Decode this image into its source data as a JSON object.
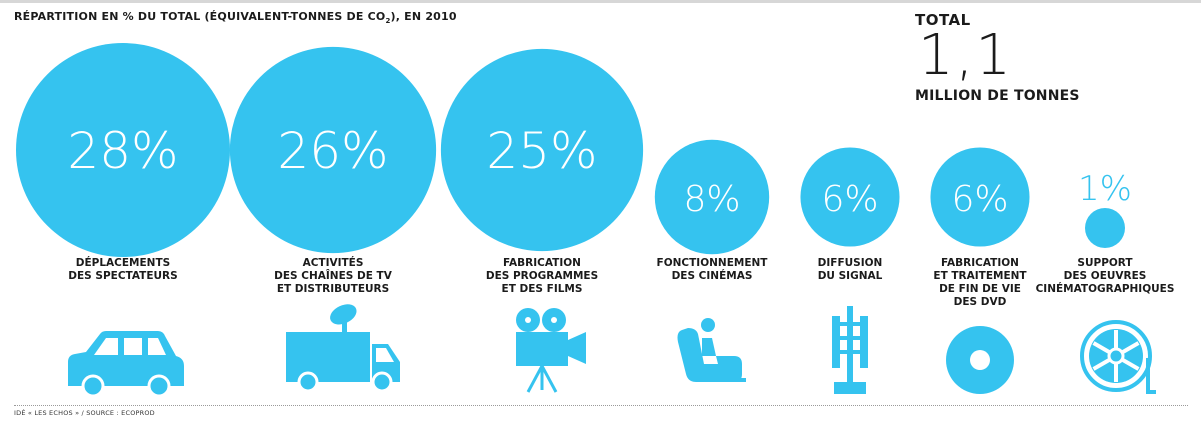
{
  "subtitle_parts": [
    "RÉPARTITION EN % DU TOTAL (ÉQUIVALENT-TONNES DE CO",
    "2",
    "), EN 2010"
  ],
  "total": {
    "label": "TOTAL",
    "value": "1,1",
    "unit": "MILLION DE TONNES"
  },
  "source": "IDÉ « LES ECHOS » / SOURCE : ECOPROD",
  "colors": {
    "accent": "#35c3ef",
    "text": "#1b1b1b",
    "white": "#ffffff"
  },
  "chart_data": {
    "type": "bubble",
    "unit": "%",
    "categories": [
      "DÉPLACEMENTS DES SPECTATEURS",
      "ACTIVITÉS DES CHAÎNES DE TV ET DISTRIBUTEURS",
      "FABRICATION DES PROGRAMMES ET DES FILMS",
      "FONCTIONNEMENT DES CINÉMAS",
      "DIFFUSION DU SIGNAL",
      "FABRICATION ET TRAITEMENT DE FIN DE VIE DES DVD",
      "SUPPORT DES OEUVRES CINÉMATOGRAPHIQUES"
    ],
    "values": [
      28,
      26,
      25,
      8,
      6,
      6,
      1
    ],
    "value_labels": [
      "28%",
      "26%",
      "25%",
      "8%",
      "6%",
      "6%",
      "1%"
    ],
    "label_lines": [
      [
        "DÉPLACEMENTS",
        "DES SPECTATEURS"
      ],
      [
        "ACTIVITÉS",
        "DES CHAÎNES DE TV",
        "ET DISTRIBUTEURS"
      ],
      [
        "FABRICATION",
        "DES PROGRAMMES",
        "ET DES FILMS"
      ],
      [
        "FONCTIONNEMENT",
        "DES CINÉMAS"
      ],
      [
        "DIFFUSION",
        "DU SIGNAL"
      ],
      [
        "FABRICATION",
        "ET TRAITEMENT",
        "DE FIN DE VIE",
        "DES DVD"
      ],
      [
        "SUPPORT",
        "DES OEUVRES",
        "CINÉMATOGRAPHIQUES"
      ]
    ],
    "icons": [
      "car-icon",
      "tv-truck-icon",
      "film-camera-icon",
      "cinema-seat-icon",
      "antenna-icon",
      "dvd-disc-icon",
      "film-reel-icon"
    ]
  }
}
